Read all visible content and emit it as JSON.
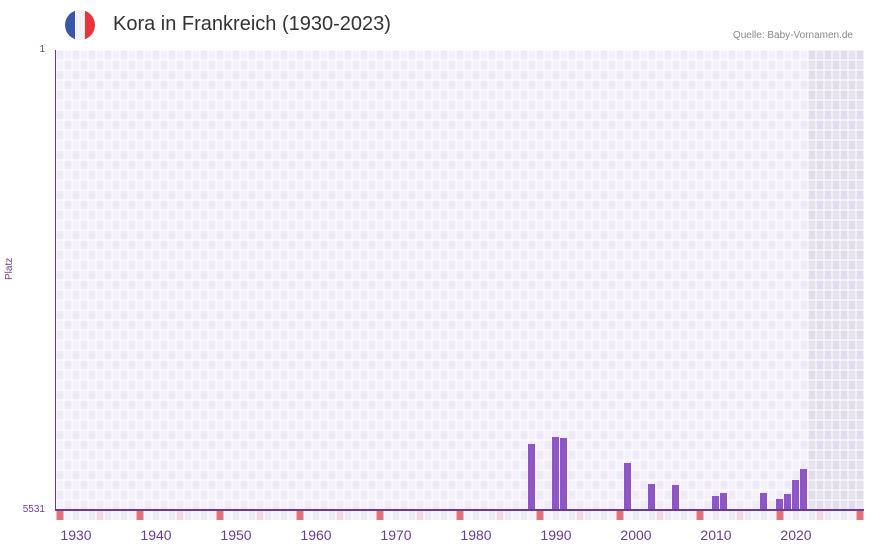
{
  "header": {
    "title": "Kora in Frankreich (1930-2023)",
    "source": "Quelle: Baby-Vornamen.de",
    "flag_colors": [
      "#3a57a7",
      "#f2f2f5",
      "#e8333b"
    ]
  },
  "colors": {
    "bar": "#8e55c6",
    "axis": "#6a3a9a",
    "grid_a": "#efeafa",
    "grid_b": "#f4f1fc",
    "shade_a": "#e2ddec",
    "shade_b": "#e6e2ee",
    "marker_strong": "#e3707a",
    "marker_light": "#f4d8e0"
  },
  "chart_data": {
    "type": "bar",
    "title": "Kora in Frankreich (1930-2023)",
    "xlabel": "",
    "ylabel": "Platz",
    "y_inverted": true,
    "ylim": [
      5531,
      1
    ],
    "x_range": [
      1928,
      2028
    ],
    "x_ticks": [
      "1930",
      "1940",
      "1950",
      "1960",
      "1970",
      "1980",
      "1990",
      "2000",
      "2010",
      "2020"
    ],
    "y_ticks": [
      "1",
      "5531"
    ],
    "shaded_from_year": 2022,
    "x": [
      1987,
      1990,
      1991,
      1999,
      2002,
      2005,
      2010,
      2011,
      2016,
      2018,
      2019,
      2020,
      2021
    ],
    "values": [
      4789,
      4873,
      4861,
      5134,
      5386,
      5398,
      5531,
      5494,
      5494,
      5531,
      5506,
      5338,
      5206
    ],
    "bar_top_y": [
      444,
      437,
      438,
      463,
      484,
      485,
      496,
      493,
      493,
      499,
      494,
      480,
      469
    ]
  },
  "labels": {
    "ytick_top": "1",
    "ytick_bottom": "5531",
    "ylabel": "Platz"
  }
}
